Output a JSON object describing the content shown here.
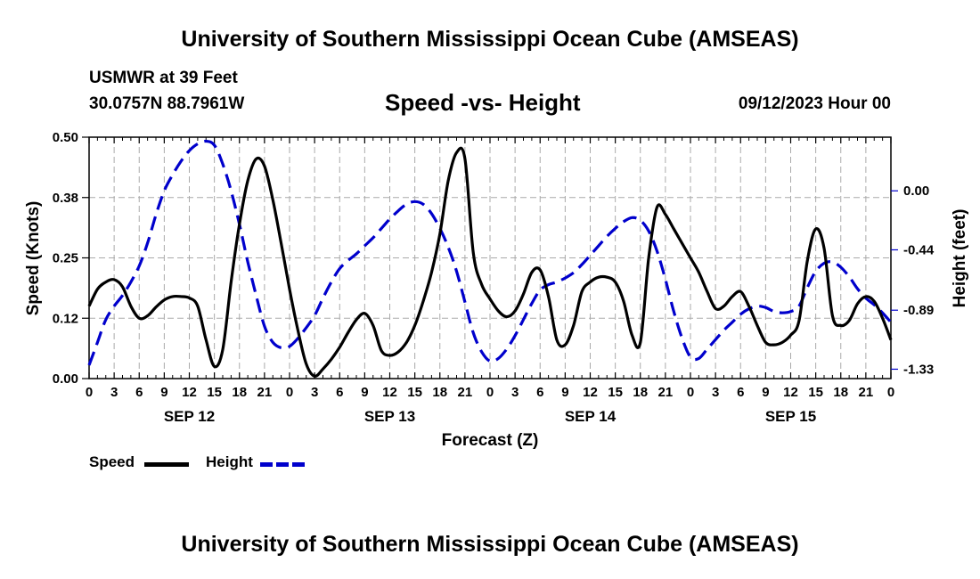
{
  "header": {
    "title": "University of Southern Mississippi Ocean Cube (AMSEAS)",
    "station": "USMWR at 39 Feet",
    "coords": "30.0757N  88.7961W",
    "subtitle": "Speed -vs- Height",
    "datetime": "09/12/2023 Hour 00",
    "footer_title": "University of Southern Mississippi Ocean Cube (AMSEAS)"
  },
  "legend": {
    "speed_label": "Speed",
    "height_label": "Height"
  },
  "chart_data": {
    "type": "line",
    "xlabel": "Forecast (Z)",
    "ylabel_left": "Speed (Knots)",
    "ylabel_right": "Height (feet)",
    "x_hours_range": [
      0,
      96
    ],
    "x_tick_labels": [
      "0",
      "3",
      "6",
      "9",
      "12",
      "15",
      "18",
      "21",
      "0",
      "3",
      "6",
      "9",
      "12",
      "15",
      "18",
      "21",
      "0",
      "3",
      "6",
      "9",
      "12",
      "15",
      "18",
      "21",
      "0",
      "3",
      "6",
      "9",
      "12",
      "15",
      "18",
      "21",
      "0"
    ],
    "day_labels": [
      {
        "hour": 12,
        "label": "SEP 12"
      },
      {
        "hour": 36,
        "label": "SEP 13"
      },
      {
        "hour": 60,
        "label": "SEP 14"
      },
      {
        "hour": 84,
        "label": "SEP 15"
      }
    ],
    "ylim_left": [
      0,
      0.5
    ],
    "y_ticks_left": [
      0.0,
      0.125,
      0.25,
      0.375,
      0.5
    ],
    "y_tick_labels_left": [
      "0.00",
      "0.12",
      "0.25",
      "0.38",
      "0.50"
    ],
    "ylim_right": [
      -1.4,
      0.4
    ],
    "y_ticks_right": [
      0.0,
      -0.44,
      -0.89,
      -1.33
    ],
    "y_tick_labels_right": [
      "0.00",
      "-0.44",
      "-0.89",
      "-1.33"
    ],
    "grid": true,
    "series": [
      {
        "name": "Speed",
        "axis": "left",
        "color": "#000000",
        "x": [
          0,
          1,
          2,
          3,
          4,
          5,
          6,
          7,
          8,
          9,
          10,
          11,
          12,
          13,
          14,
          15,
          16,
          17,
          18,
          19,
          20,
          21,
          22,
          23,
          24,
          25,
          26,
          27,
          28,
          29,
          30,
          31,
          32,
          33,
          34,
          35,
          36,
          37,
          38,
          39,
          40,
          41,
          42,
          43,
          44,
          45,
          46,
          47,
          48,
          49,
          50,
          51,
          52,
          53,
          54,
          55,
          56,
          57,
          58,
          59,
          60,
          61,
          62,
          63,
          64,
          65,
          66,
          67,
          68,
          69,
          70,
          71,
          72,
          73,
          74,
          75,
          76,
          77,
          78,
          79,
          80,
          81,
          82,
          83,
          84,
          85,
          86,
          87,
          88,
          89,
          90,
          91,
          92,
          93,
          94,
          95,
          96
        ],
        "values": [
          0.15,
          0.185,
          0.2,
          0.205,
          0.19,
          0.15,
          0.125,
          0.13,
          0.148,
          0.163,
          0.17,
          0.17,
          0.167,
          0.15,
          0.08,
          0.025,
          0.06,
          0.2,
          0.32,
          0.41,
          0.455,
          0.44,
          0.37,
          0.28,
          0.185,
          0.1,
          0.03,
          0.005,
          0.02,
          0.04,
          0.065,
          0.095,
          0.122,
          0.135,
          0.11,
          0.058,
          0.048,
          0.055,
          0.075,
          0.11,
          0.16,
          0.22,
          0.3,
          0.41,
          0.468,
          0.455,
          0.26,
          0.195,
          0.165,
          0.14,
          0.128,
          0.14,
          0.175,
          0.22,
          0.225,
          0.17,
          0.08,
          0.07,
          0.11,
          0.18,
          0.2,
          0.21,
          0.21,
          0.2,
          0.16,
          0.09,
          0.075,
          0.25,
          0.355,
          0.34,
          0.31,
          0.28,
          0.25,
          0.22,
          0.18,
          0.145,
          0.15,
          0.17,
          0.18,
          0.15,
          0.11,
          0.075,
          0.07,
          0.075,
          0.09,
          0.12,
          0.245,
          0.31,
          0.27,
          0.13,
          0.11,
          0.12,
          0.155,
          0.17,
          0.16,
          0.125,
          0.08
        ]
      },
      {
        "name": "Height",
        "axis": "right",
        "color": "#0000cc",
        "x": [
          0,
          1,
          2,
          3,
          4,
          5,
          6,
          7,
          8,
          9,
          10,
          11,
          12,
          13,
          14,
          15,
          16,
          17,
          18,
          19,
          20,
          21,
          22,
          23,
          24,
          25,
          26,
          27,
          28,
          29,
          30,
          31,
          32,
          33,
          34,
          35,
          36,
          37,
          38,
          39,
          40,
          41,
          42,
          43,
          44,
          45,
          46,
          47,
          48,
          49,
          50,
          51,
          52,
          53,
          54,
          55,
          56,
          57,
          58,
          59,
          60,
          61,
          62,
          63,
          64,
          65,
          66,
          67,
          68,
          69,
          70,
          71,
          72,
          73,
          74,
          75,
          76,
          77,
          78,
          79,
          80,
          81,
          82,
          83,
          84,
          85,
          86,
          87,
          88,
          89,
          90,
          91,
          92,
          93,
          94,
          95,
          96
        ],
        "values": [
          -1.3,
          -1.13,
          -0.96,
          -0.86,
          -0.78,
          -0.68,
          -0.56,
          -0.39,
          -0.18,
          0.0,
          0.12,
          0.22,
          0.3,
          0.35,
          0.37,
          0.34,
          0.2,
          0.0,
          -0.25,
          -0.53,
          -0.78,
          -1.01,
          -1.13,
          -1.17,
          -1.16,
          -1.1,
          -1.02,
          -0.93,
          -0.8,
          -0.68,
          -0.58,
          -0.52,
          -0.47,
          -0.41,
          -0.35,
          -0.28,
          -0.21,
          -0.15,
          -0.1,
          -0.08,
          -0.1,
          -0.17,
          -0.28,
          -0.42,
          -0.6,
          -0.83,
          -1.06,
          -1.2,
          -1.27,
          -1.25,
          -1.18,
          -1.08,
          -0.96,
          -0.84,
          -0.74,
          -0.7,
          -0.68,
          -0.65,
          -0.61,
          -0.55,
          -0.48,
          -0.41,
          -0.34,
          -0.28,
          -0.23,
          -0.2,
          -0.22,
          -0.3,
          -0.45,
          -0.66,
          -0.9,
          -1.1,
          -1.24,
          -1.25,
          -1.18,
          -1.11,
          -1.04,
          -0.98,
          -0.92,
          -0.88,
          -0.86,
          -0.87,
          -0.9,
          -0.91,
          -0.9,
          -0.86,
          -0.72,
          -0.6,
          -0.54,
          -0.53,
          -0.57,
          -0.64,
          -0.73,
          -0.8,
          -0.85,
          -0.91,
          -0.98
        ]
      }
    ]
  }
}
